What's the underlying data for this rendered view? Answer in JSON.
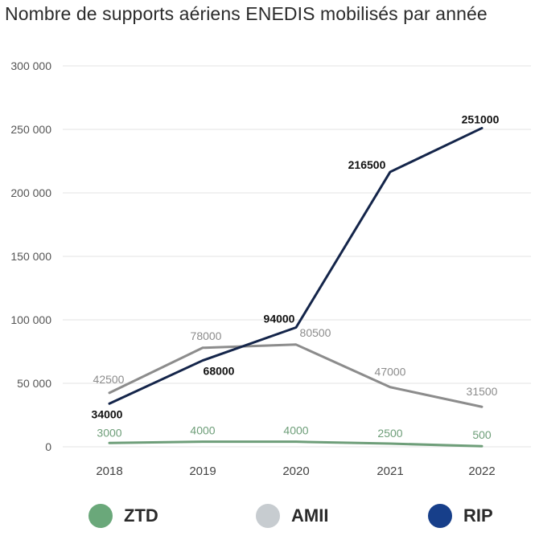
{
  "chart_data": {
    "type": "line",
    "title": "Nombre de supports aériens ENEDIS mobilisés par année",
    "xlabel": "",
    "ylabel": "",
    "categories": [
      "2018",
      "2019",
      "2020",
      "2021",
      "2022"
    ],
    "ylim": [
      0,
      300000
    ],
    "yticks": [
      0,
      50000,
      100000,
      150000,
      200000,
      250000,
      300000
    ],
    "ytick_labels": [
      "0",
      "50 000",
      "100 000",
      "150 000",
      "200 000",
      "250 000",
      "300 000"
    ],
    "grid": true,
    "legend_position": "bottom",
    "series": [
      {
        "name": "ZTD",
        "color": "#6e9e79",
        "legend_color": "#6aa87a",
        "label_color": "#6e9e79",
        "values": [
          3000,
          4000,
          4000,
          2500,
          500
        ],
        "labels": [
          "3000",
          "4000",
          "4000",
          "2500",
          "500"
        ]
      },
      {
        "name": "AMII",
        "color": "#8c8c8c",
        "legend_color": "#c7ccd0",
        "label_color": "#8c8c8c",
        "values": [
          42500,
          78000,
          80500,
          47000,
          31500
        ],
        "labels": [
          "42500",
          "78000",
          "80500",
          "47000",
          "31500"
        ]
      },
      {
        "name": "RIP",
        "color": "#14254a",
        "legend_color": "#173f8a",
        "label_color": "#111111",
        "values": [
          34000,
          68000,
          94000,
          216500,
          251000
        ],
        "labels": [
          "34000",
          "68000",
          "94000",
          "216500",
          "251000"
        ]
      }
    ]
  }
}
